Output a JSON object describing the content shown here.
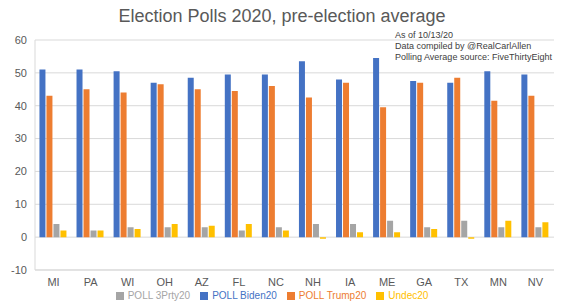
{
  "chart_data": {
    "type": "bar",
    "title": "Election Polls 2020, pre-election average",
    "annotations": [
      "As of 10/13/20",
      "Data compiled by @RealCarlAllen",
      "Polling Average source: FiveThirtyEight"
    ],
    "categories": [
      "MI",
      "PA",
      "WI",
      "OH",
      "AZ",
      "FL",
      "NC",
      "NH",
      "IA",
      "ME",
      "GA",
      "TX",
      "MN",
      "NV"
    ],
    "series": [
      {
        "name": "POLL Biden20",
        "color": "#4472c4",
        "values": [
          51,
          51,
          50.5,
          47,
          48.5,
          49.5,
          49.5,
          53.5,
          48,
          54.5,
          47.5,
          47,
          50.5,
          49.5
        ]
      },
      {
        "name": "POLL Trump20",
        "color": "#ed7d31",
        "values": [
          43,
          45,
          44,
          46.5,
          45,
          44.5,
          46,
          42.5,
          47,
          39.5,
          47,
          48.5,
          41.5,
          43
        ]
      },
      {
        "name": "POLL 3Prty20",
        "color": "#a5a5a5",
        "values": [
          4,
          2,
          3,
          3,
          3,
          2,
          3,
          4,
          4,
          5,
          3,
          5,
          3,
          3
        ]
      },
      {
        "name": "Undec20",
        "color": "#ffc000",
        "values": [
          2,
          2,
          2.5,
          4,
          3.5,
          4,
          2,
          -0.5,
          1.5,
          1.5,
          2.5,
          -0.5,
          5,
          4.5
        ]
      }
    ],
    "ylim": [
      -10,
      60
    ],
    "yticks": [
      -10,
      0,
      10,
      20,
      30,
      40,
      50,
      60
    ],
    "grid": true,
    "legend": "bottom"
  }
}
